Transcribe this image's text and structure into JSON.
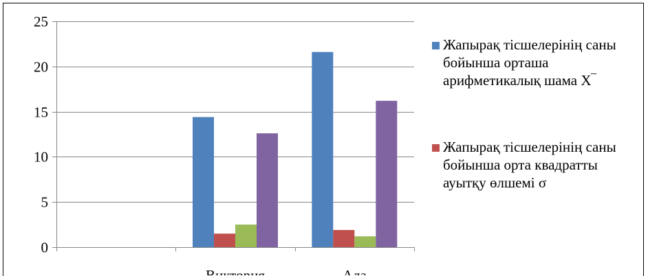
{
  "chart_data": {
    "type": "bar",
    "categories": [
      "",
      "Виктория",
      "Ала"
    ],
    "series": [
      {
        "name": "Жапырақ тісшелерінің саны бойынша  орташа арифметикалық шама Х‾",
        "color": "#4f81bd",
        "values": [
          0,
          14.4,
          21.6
        ]
      },
      {
        "name": "Жапырақ тісшелерінің саны бойынша  орта квадратты ауытқу өлшемі σ",
        "color": "#c0504d",
        "values": [
          0,
          1.5,
          1.9
        ]
      },
      {
        "name": "",
        "color": "#9bbb59",
        "values": [
          0,
          2.5,
          1.2
        ]
      },
      {
        "name": "",
        "color": "#8064a2",
        "values": [
          0,
          12.6,
          16.2
        ]
      }
    ],
    "yticks": [
      0,
      5,
      10,
      15,
      20,
      25
    ],
    "ylim": [
      0,
      25
    ],
    "grid": true,
    "legend_position": "right"
  }
}
